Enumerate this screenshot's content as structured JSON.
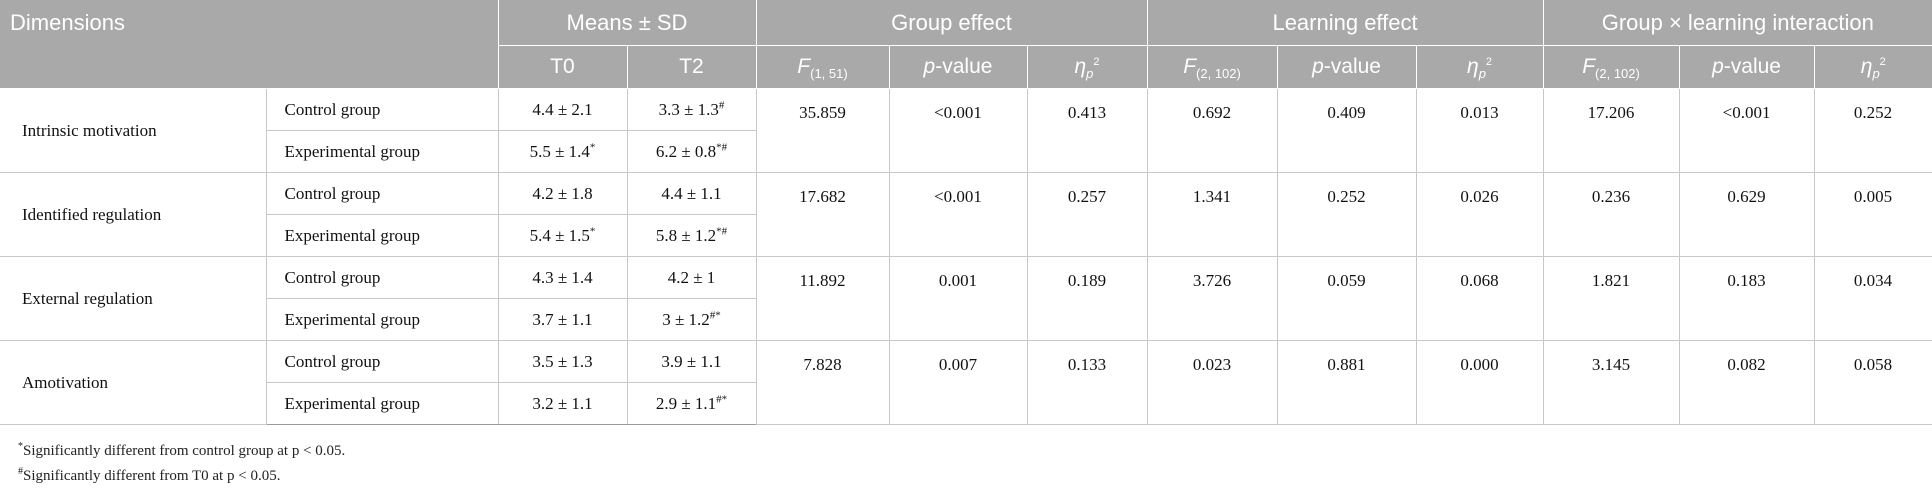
{
  "header": {
    "dimensions": "Dimensions",
    "means_sd": "Means ± SD",
    "group_effect": "Group effect",
    "learning_effect": "Learning effect",
    "interaction": "Group × learning interaction",
    "t0": "T0",
    "t2": "T2",
    "f_label": "F",
    "f_group_df": "(1, 51)",
    "f_learning_df": "(2, 102)",
    "f_interaction_df": "(2, 102)",
    "p_label": "p",
    "p_suffix": "-value",
    "eta_label": "η",
    "eta_sub": "p",
    "eta_sup": "2"
  },
  "rows": [
    {
      "dimension": "Intrinsic motivation",
      "control": {
        "label": "Control group",
        "t0": "4.4 ± 2.1",
        "t0_mark": "",
        "t2": "3.3 ± 1.3",
        "t2_mark": "#"
      },
      "experimental": {
        "label": "Experimental group",
        "t0": "5.5 ± 1.4",
        "t0_mark": "*",
        "t2": "6.2 ± 0.8",
        "t2_mark": "*#"
      },
      "group": {
        "f": "35.859",
        "p": "<0.001",
        "eta": "0.413"
      },
      "learning": {
        "f": "0.692",
        "p": "0.409",
        "eta": "0.013"
      },
      "interaction": {
        "f": "17.206",
        "p": "<0.001",
        "eta": "0.252"
      }
    },
    {
      "dimension": "Identified regulation",
      "control": {
        "label": "Control group",
        "t0": "4.2 ± 1.8",
        "t0_mark": "",
        "t2": "4.4 ± 1.1",
        "t2_mark": ""
      },
      "experimental": {
        "label": "Experimental group",
        "t0": "5.4 ± 1.5",
        "t0_mark": "*",
        "t2": "5.8 ± 1.2",
        "t2_mark": "*#"
      },
      "group": {
        "f": "17.682",
        "p": "<0.001",
        "eta": "0.257"
      },
      "learning": {
        "f": "1.341",
        "p": "0.252",
        "eta": "0.026"
      },
      "interaction": {
        "f": "0.236",
        "p": "0.629",
        "eta": "0.005"
      }
    },
    {
      "dimension": "External regulation",
      "control": {
        "label": "Control group",
        "t0": "4.3 ± 1.4",
        "t0_mark": "",
        "t2": "4.2 ± 1",
        "t2_mark": ""
      },
      "experimental": {
        "label": "Experimental group",
        "t0": "3.7 ± 1.1",
        "t0_mark": "",
        "t2": "3 ± 1.2",
        "t2_mark": "#*"
      },
      "group": {
        "f": "11.892",
        "p": "0.001",
        "eta": "0.189"
      },
      "learning": {
        "f": "3.726",
        "p": "0.059",
        "eta": "0.068"
      },
      "interaction": {
        "f": "1.821",
        "p": "0.183",
        "eta": "0.034"
      }
    },
    {
      "dimension": "Amotivation",
      "control": {
        "label": "Control group",
        "t0": "3.5 ± 1.3",
        "t0_mark": "",
        "t2": "3.9 ± 1.1",
        "t2_mark": ""
      },
      "experimental": {
        "label": "Experimental group",
        "t0": "3.2 ± 1.1",
        "t0_mark": "",
        "t2": "2.9 ± 1.1",
        "t2_mark": "#*"
      },
      "group": {
        "f": "7.828",
        "p": "0.007",
        "eta": "0.133"
      },
      "learning": {
        "f": "0.023",
        "p": "0.881",
        "eta": "0.000"
      },
      "interaction": {
        "f": "3.145",
        "p": "0.082",
        "eta": "0.058"
      }
    }
  ],
  "footnotes": [
    {
      "mark": "*",
      "text": "Significantly different from control group at p < 0.05."
    },
    {
      "mark": "#",
      "text": "Significantly different from T0 at p < 0.05."
    }
  ]
}
